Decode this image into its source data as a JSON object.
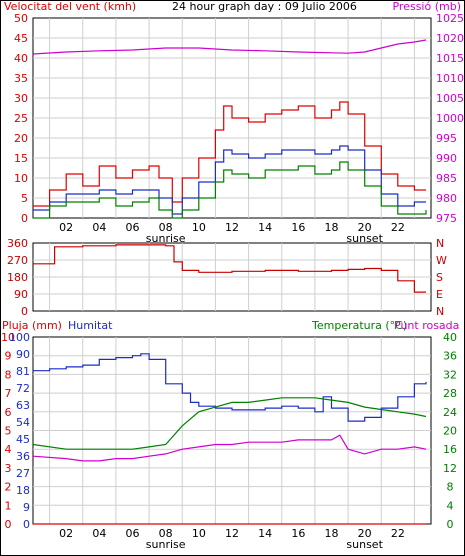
{
  "header": {
    "wind_title": "Velocitat del vent (kmh)",
    "graph_title": "24 hour graph day : 09 Julio 2006",
    "pressure_title": "Pressió (mb)"
  },
  "panel3_labels": {
    "rain": "Pluja (mm)",
    "humidity": "Humitat",
    "temperature": "Temperatura (°C)",
    "dewpoint": "Punt rosada"
  },
  "x_labels": [
    "02",
    "04",
    "06",
    "08",
    "10",
    "12",
    "14",
    "16",
    "18",
    "20",
    "22"
  ],
  "sun_labels": {
    "sunrise": "sunrise",
    "sunset": "sunset"
  },
  "colors": {
    "wind_gust": "#e00000",
    "wind_avg": "#1c2cc8",
    "wind_low": "#008000",
    "pressure": "#d000d0",
    "direction": "#c80000",
    "humidity": "#1c2cc8",
    "temperature": "#008000",
    "dewpoint": "#d000d0",
    "rain": "#e00000",
    "grid": "#cfcfcf"
  },
  "chart_data": [
    {
      "type": "line",
      "x_unit": "hour",
      "xlim": [
        0,
        24
      ],
      "ylim_left": [
        0,
        50
      ],
      "left_ticks": [
        "0",
        "5",
        "10",
        "15",
        "20",
        "25",
        "30",
        "35",
        "40",
        "45",
        "50"
      ],
      "ylim_right": [
        975,
        1025
      ],
      "right_ticks": [
        "975",
        "980",
        "985",
        "990",
        "995",
        "1000",
        "1005",
        "1010",
        "1015",
        "1020",
        "1025"
      ],
      "series": [
        {
          "color": "#e00000",
          "axis": "left",
          "x": [
            0,
            1,
            2,
            3,
            4,
            5,
            6,
            7,
            7.6,
            8.4,
            9,
            10,
            11,
            11.5,
            12,
            13,
            14,
            15,
            16,
            17,
            18,
            18.5,
            19,
            20,
            21,
            22,
            23,
            23.7
          ],
          "y": [
            3,
            7,
            11,
            8,
            13,
            10,
            12,
            13,
            10,
            4,
            10,
            15,
            22,
            28,
            25,
            24,
            26,
            27,
            28,
            25,
            27,
            29,
            26,
            18,
            11,
            8,
            7,
            7
          ]
        },
        {
          "color": "#1c2cc8",
          "axis": "left",
          "x": [
            0,
            1,
            2,
            3,
            4,
            5,
            6,
            7,
            7.6,
            8.4,
            9,
            10,
            11,
            11.5,
            12,
            13,
            14,
            15,
            16,
            17,
            18,
            18.5,
            19,
            20,
            21,
            22,
            23,
            23.7
          ],
          "y": [
            2,
            4,
            6,
            6,
            7,
            6,
            7,
            7,
            5,
            1,
            5,
            9,
            14,
            17,
            16,
            15,
            16,
            17,
            17,
            16,
            17,
            18,
            17,
            12,
            6,
            3,
            4,
            4
          ]
        },
        {
          "color": "#008000",
          "axis": "left",
          "x": [
            0,
            1,
            2,
            3,
            4,
            5,
            6,
            7,
            7.6,
            8.4,
            9,
            10,
            11,
            11.5,
            12,
            13,
            14,
            15,
            16,
            17,
            18,
            18.5,
            19,
            20,
            21,
            22,
            23,
            23.7
          ],
          "y": [
            0,
            3,
            4,
            4,
            5,
            3,
            4,
            5,
            2,
            0,
            2,
            5,
            9,
            12,
            11,
            10,
            12,
            12,
            13,
            11,
            12,
            14,
            12,
            8,
            3,
            1,
            1,
            2
          ]
        },
        {
          "color": "#d000d0",
          "axis": "right",
          "x": [
            0,
            2,
            4,
            6,
            8,
            10,
            12,
            14,
            16,
            18,
            19,
            20,
            21,
            22,
            23,
            23.7
          ],
          "y": [
            1016,
            1016.5,
            1016.8,
            1017,
            1017.5,
            1017.5,
            1017,
            1016.8,
            1016.5,
            1016.3,
            1016.2,
            1016.5,
            1017.5,
            1018.5,
            1019,
            1019.5
          ]
        }
      ]
    },
    {
      "type": "line",
      "x_unit": "hour",
      "xlim": [
        0,
        24
      ],
      "ylim": [
        0,
        360
      ],
      "left_ticks": [
        "0",
        "90",
        "180",
        "270",
        "360"
      ],
      "right_labels": [
        "N",
        "W",
        "S",
        "E",
        "N"
      ],
      "series": [
        {
          "color": "#c80000",
          "x": [
            0,
            1.2,
            1.3,
            3,
            5,
            7,
            8,
            8.5,
            9,
            10,
            12,
            14,
            16,
            18,
            19,
            20,
            21,
            22,
            23,
            23.7
          ],
          "y": [
            250,
            250,
            340,
            345,
            350,
            350,
            345,
            260,
            215,
            205,
            210,
            215,
            210,
            215,
            220,
            225,
            215,
            160,
            100,
            100
          ]
        }
      ]
    },
    {
      "type": "line",
      "x_unit": "hour",
      "xlim": [
        0,
        24
      ],
      "ylim_rain": [
        0,
        10
      ],
      "rain_ticks": [
        "0",
        "1",
        "2",
        "3",
        "4",
        "5",
        "6",
        "7",
        "8",
        "9",
        "10"
      ],
      "ylim_humidity": [
        0,
        100
      ],
      "humidity_ticks": [
        "0",
        "9",
        "18",
        "27",
        "36",
        "45",
        "54",
        "63",
        "72",
        "81",
        "90",
        "100"
      ],
      "ylim_temp": [
        0,
        40
      ],
      "temp_ticks": [
        "0",
        "4",
        "8",
        "12",
        "16",
        "20",
        "24",
        "28",
        "32",
        "36",
        "40"
      ],
      "series": [
        {
          "color": "#1c2cc8",
          "axis": "humidity",
          "x": [
            0,
            1,
            2,
            3,
            4,
            5,
            6,
            6.5,
            7,
            8,
            9,
            9.5,
            10,
            11,
            12,
            13,
            14,
            15,
            16,
            17,
            17.5,
            18,
            19,
            20,
            21,
            22,
            23,
            23.7
          ],
          "y": [
            82,
            83,
            84,
            85,
            88,
            89,
            90,
            91,
            88,
            75,
            70,
            65,
            63,
            62,
            61,
            61,
            62,
            63,
            62,
            60,
            68,
            62,
            55,
            57,
            62,
            68,
            75,
            76
          ]
        },
        {
          "color": "#008000",
          "axis": "temp",
          "x": [
            0,
            2,
            4,
            6,
            7,
            8,
            9,
            10,
            11,
            12,
            13,
            14,
            15,
            16,
            17,
            18,
            19,
            20,
            21,
            22,
            23,
            23.7
          ],
          "y": [
            17,
            16,
            16,
            16,
            16.5,
            17,
            21,
            24,
            25,
            26,
            26,
            26.5,
            27,
            27,
            27,
            26.5,
            26,
            25,
            24.5,
            24,
            23.5,
            23
          ]
        },
        {
          "color": "#d000d0",
          "axis": "temp",
          "x": [
            0,
            2,
            3,
            4,
            5,
            6,
            7,
            8,
            9,
            10,
            11,
            12,
            13,
            14,
            15,
            16,
            17,
            18,
            18.5,
            19,
            20,
            21,
            22,
            23,
            23.7
          ],
          "y": [
            14.5,
            14,
            13.5,
            13.5,
            14,
            14,
            14.5,
            15,
            16,
            16.5,
            17,
            17,
            17.5,
            17.5,
            17.5,
            18,
            18,
            18,
            19,
            16,
            15,
            16,
            16,
            16.5,
            16
          ]
        },
        {
          "color": "#e00000",
          "axis": "rain",
          "x": [
            0,
            23.7
          ],
          "y": [
            0,
            0
          ]
        }
      ]
    }
  ]
}
